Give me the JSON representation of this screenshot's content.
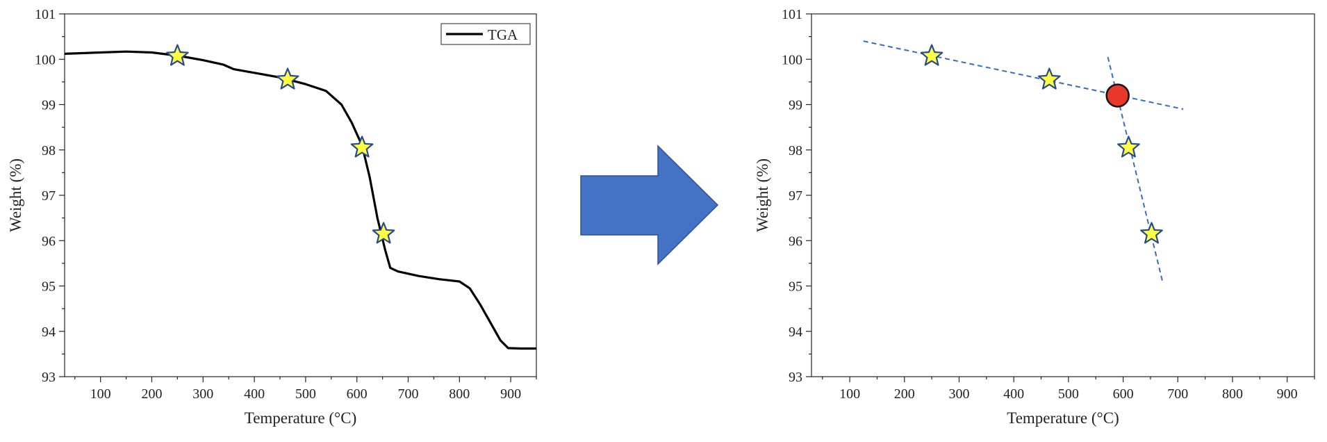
{
  "chart_data": [
    {
      "type": "line",
      "xlabel": "Temperature (°C)",
      "ylabel": "Weight (%)",
      "xlim": [
        30,
        950
      ],
      "ylim": [
        93,
        101
      ],
      "xticks": [
        100,
        200,
        300,
        400,
        500,
        600,
        700,
        800,
        900
      ],
      "yticks": [
        93,
        94,
        95,
        96,
        97,
        98,
        99,
        100,
        101
      ],
      "legend": {
        "entries": [
          "TGA"
        ],
        "placement": "top-right"
      },
      "grid": false,
      "series": [
        {
          "name": "TGA",
          "color": "#000000",
          "x": [
            30,
            100,
            150,
            200,
            250,
            300,
            340,
            360,
            400,
            450,
            500,
            540,
            570,
            590,
            610,
            625,
            640,
            655,
            665,
            680,
            720,
            760,
            800,
            820,
            840,
            860,
            880,
            895,
            920,
            950
          ],
          "y": [
            100.12,
            100.15,
            100.17,
            100.15,
            100.08,
            99.98,
            99.88,
            99.78,
            99.7,
            99.6,
            99.45,
            99.3,
            99.0,
            98.6,
            98.1,
            97.4,
            96.5,
            95.8,
            95.4,
            95.32,
            95.22,
            95.15,
            95.1,
            94.95,
            94.6,
            94.2,
            93.8,
            93.63,
            93.62,
            93.62
          ]
        }
      ],
      "markers": {
        "shape": "star",
        "fill": "#ffff44",
        "stroke": "#2a4a8a",
        "points": [
          {
            "x": 250,
            "y": 100.07
          },
          {
            "x": 465,
            "y": 99.55
          },
          {
            "x": 610,
            "y": 98.05
          },
          {
            "x": 652,
            "y": 96.15
          }
        ]
      }
    },
    {
      "type": "scatter",
      "xlabel": "Temperature (°C)",
      "ylabel": "Weight (%)",
      "xlim": [
        30,
        950
      ],
      "ylim": [
        93,
        101
      ],
      "xticks": [
        100,
        200,
        300,
        400,
        500,
        600,
        700,
        800,
        900
      ],
      "yticks": [
        93,
        94,
        95,
        96,
        97,
        98,
        99,
        100,
        101
      ],
      "grid": false,
      "markers": {
        "shape": "star",
        "fill": "#ffff44",
        "stroke": "#2a4a8a",
        "points": [
          {
            "x": 250,
            "y": 100.07
          },
          {
            "x": 465,
            "y": 99.55
          },
          {
            "x": 610,
            "y": 98.05
          },
          {
            "x": 652,
            "y": 96.15
          }
        ]
      },
      "tangent_lines": [
        {
          "color": "#3a6bc0",
          "points": [
            [
              125,
              100.4
            ],
            [
              710,
              98.9
            ]
          ]
        },
        {
          "color": "#3a6bc0",
          "points": [
            [
              572,
              100.05
            ],
            [
              672,
              95.1
            ]
          ]
        }
      ],
      "intersection": {
        "x": 590,
        "y": 99.2,
        "fill": "#e8372b",
        "stroke": "#111111"
      }
    }
  ],
  "arrow": {
    "icon": "right-arrow-icon",
    "color": "#4472c4",
    "stroke": "#2f528f"
  }
}
